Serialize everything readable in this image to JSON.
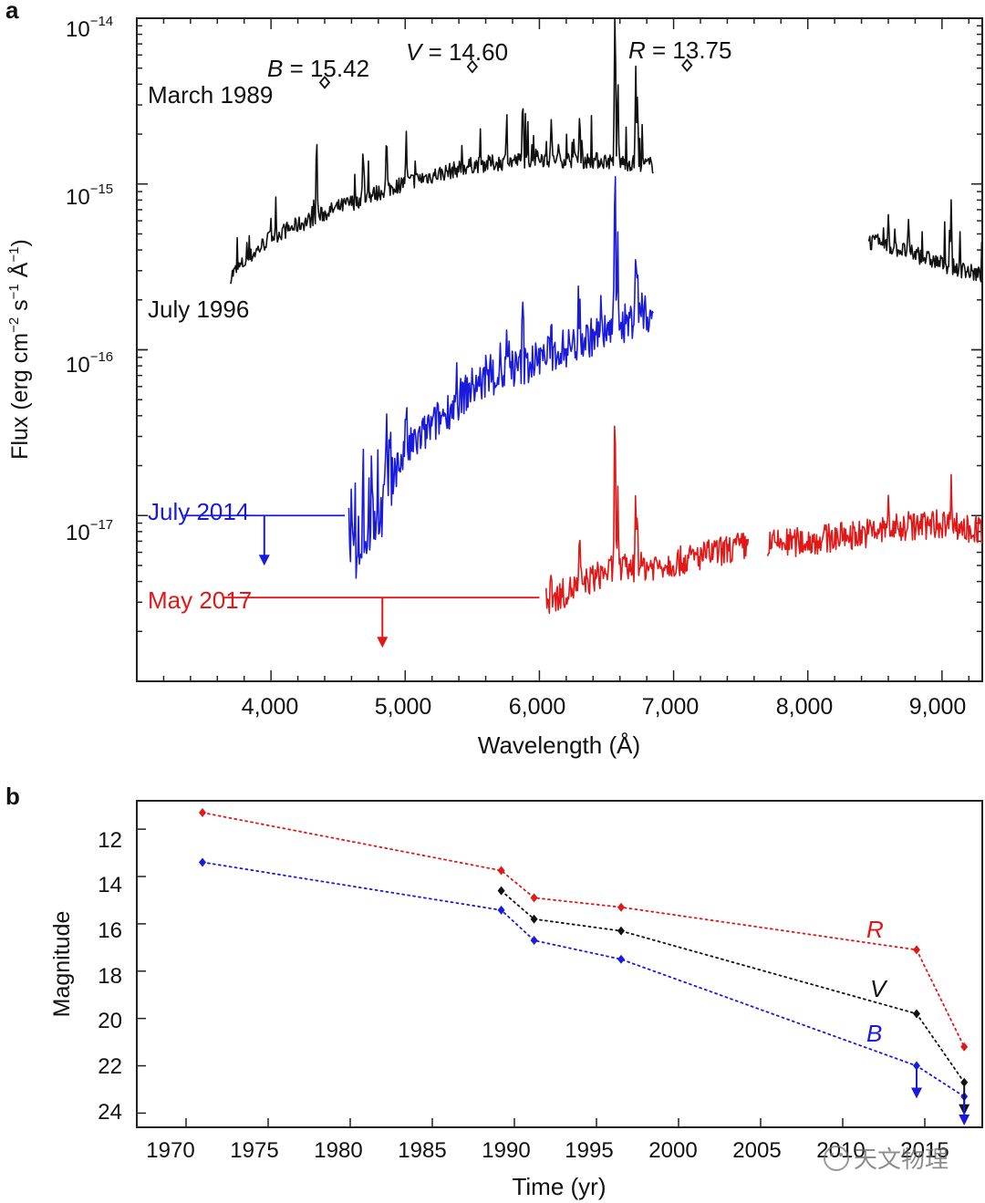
{
  "panel_a": {
    "panel_label": "a",
    "xlabel": "Wavelength (Å)",
    "ylabel_base": "Flux (erg cm",
    "ylabel_sup1": "−2",
    "ylabel_mid1": " s",
    "ylabel_sup2": "−1",
    "ylabel_mid2": " Å",
    "ylabel_sup3": "−1",
    "ylabel_end": ")",
    "ytick_base": "10",
    "ytick_exponents": [
      "−14",
      "−15",
      "−16",
      "−17"
    ],
    "xtick_labels": [
      "4,000",
      "5,000",
      "6,000",
      "7,000",
      "8,000",
      "9,000"
    ],
    "photometry": [
      {
        "band": "B",
        "eq": " = 15.42"
      },
      {
        "band": "V",
        "eq": " = 14.60"
      },
      {
        "band": "R",
        "eq": " = 13.75"
      }
    ],
    "epochs": {
      "march_1989": "March 1989",
      "july_1996": "July 1996",
      "july_2014": "July 2014",
      "may_2017": "May 2017"
    }
  },
  "panel_b": {
    "panel_label": "b",
    "xlabel": "Time (yr)",
    "ylabel": "Magnitude",
    "xtick_labels": [
      "1970",
      "1975",
      "1980",
      "1985",
      "1990",
      "1995",
      "2000",
      "2005",
      "2010",
      "2015"
    ],
    "ytick_labels": [
      "12",
      "14",
      "16",
      "18",
      "20",
      "22",
      "24"
    ],
    "series_labels": {
      "R": "R",
      "V": "V",
      "B": "B"
    }
  },
  "watermark": {
    "text": "天文物理"
  },
  "colors": {
    "black": "#111111",
    "blue": "#1a1adc",
    "red": "#e01818",
    "axis": "#222222"
  },
  "chart_data": [
    {
      "type": "line",
      "title": "",
      "xlabel": "Wavelength (Å)",
      "ylabel": "Flux (erg cm−2 s−1 Å−1)",
      "yscale": "log",
      "xlim": [
        3000,
        9300
      ],
      "ylim": [
        1e-18,
        1e-14
      ],
      "series": [
        {
          "name": "March 1989",
          "color": "#111111",
          "x": [
            3700,
            4000,
            4500,
            5000,
            5500,
            6000,
            6500,
            6850
          ],
          "y": [
            2.8e-16,
            4.8e-16,
            7.2e-16,
            1.02e-15,
            1.3e-15,
            1.42e-15,
            1.38e-15,
            1.3e-15
          ]
        },
        {
          "name": "March 1989 (red end)",
          "color": "#111111",
          "x": [
            8450,
            8700,
            9000,
            9300
          ],
          "y": [
            4.5e-16,
            4e-16,
            3.3e-16,
            2.8e-16
          ]
        },
        {
          "name": "July 1996",
          "color": "#1a1adc",
          "x": [
            4580,
            5000,
            5500,
            6000,
            6500,
            6850
          ],
          "y": [
            6e-18,
            2.4e-17,
            6e-17,
            8.8e-17,
            1.3e-16,
            1.7e-16
          ]
        },
        {
          "name": "May 2017",
          "color": "#e01818",
          "x": [
            6050,
            6500,
            7000,
            7500,
            8000,
            8500,
            9000,
            9300
          ],
          "y": [
            3e-18,
            4.6e-18,
            5.2e-18,
            6.5e-18,
            7e-18,
            8e-18,
            9e-18,
            8e-18
          ]
        }
      ],
      "upper_limits": [
        {
          "name": "July 2014",
          "x_range": [
            3350,
            4550
          ],
          "y": 1e-17,
          "arrow_x": 3950,
          "color": "#1a1adc"
        },
        {
          "name": "May 2017",
          "x_range": [
            3650,
            6000
          ],
          "y": 3.2e-18,
          "arrow_x": 4830,
          "color": "#e01818"
        }
      ],
      "photometry_points": [
        {
          "band": "B",
          "x": 4400,
          "y": 4.1e-15,
          "mag": 15.42
        },
        {
          "band": "V",
          "x": 5500,
          "y": 5.1e-15,
          "mag": 14.6
        },
        {
          "band": "R",
          "x": 7100,
          "y": 5.2e-15,
          "mag": 13.75
        }
      ]
    },
    {
      "type": "line",
      "title": "",
      "xlabel": "Time (yr)",
      "ylabel": "Magnitude",
      "xlim": [
        1967,
        2018.5
      ],
      "ylim": [
        24.6,
        10.8
      ],
      "y_inverted": true,
      "series": [
        {
          "name": "R",
          "color": "#e01818",
          "x": [
            1971,
            1989.2,
            1991.2,
            1996.5,
            2014.5,
            2017.4
          ],
          "y": [
            11.3,
            13.75,
            14.9,
            15.3,
            17.1,
            21.2
          ]
        },
        {
          "name": "V",
          "color": "#111111",
          "x": [
            1989.2,
            1991.2,
            1996.5,
            2014.5,
            2017.4
          ],
          "y": [
            14.6,
            15.8,
            16.3,
            19.8,
            22.7
          ]
        },
        {
          "name": "B",
          "color": "#1a1adc",
          "x": [
            1971,
            1989.2,
            1991.2,
            1996.5,
            2014.5,
            2017.4
          ],
          "y": [
            13.4,
            15.42,
            16.7,
            17.5,
            22.0,
            23.3
          ]
        }
      ],
      "upper_limits": [
        {
          "series": "B",
          "x": 2014.5,
          "y": 22.0
        },
        {
          "series": "V",
          "x": 2017.4,
          "y": 22.7
        },
        {
          "series": "B",
          "x": 2017.4,
          "y": 23.3
        }
      ]
    }
  ]
}
